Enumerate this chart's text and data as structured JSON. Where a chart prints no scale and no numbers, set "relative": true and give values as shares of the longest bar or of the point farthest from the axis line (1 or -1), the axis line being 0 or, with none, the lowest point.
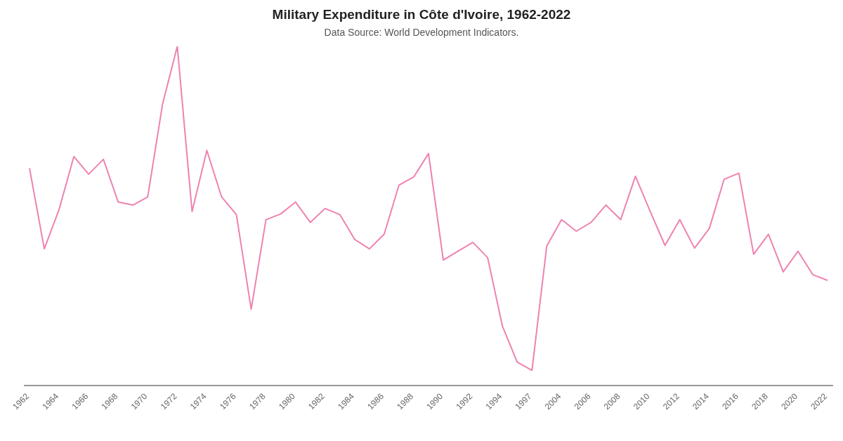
{
  "chart_data": {
    "type": "line",
    "title": "Military Expenditure in Côte d'Ivoire, 1962-2022",
    "subtitle": "Data Source: World Development Indicators.",
    "relative": true,
    "grid": false,
    "legend": false,
    "marker": "none",
    "line_style": "solid",
    "categories": [
      "1962",
      null,
      "1964",
      null,
      "1966",
      null,
      "1968",
      null,
      "1970",
      null,
      "1972",
      null,
      "1974",
      null,
      "1976",
      null,
      "1978",
      null,
      "1980",
      null,
      "1982",
      null,
      "1984",
      null,
      "1986",
      null,
      "1988",
      null,
      "1990",
      null,
      "1992",
      null,
      "1994",
      null,
      "1997",
      null,
      "2004",
      null,
      "2006",
      null,
      "2008",
      null,
      "2010",
      null,
      "2012",
      null,
      "2014",
      null,
      "2016",
      null,
      "2018",
      null,
      "2020",
      null,
      "2022"
    ],
    "series": [
      {
        "color": "#ee82b1",
        "values": [
          0.641,
          0.403,
          0.519,
          0.675,
          0.623,
          0.667,
          0.541,
          0.532,
          0.556,
          0.829,
          1,
          0.513,
          0.693,
          0.556,
          0.504,
          0.225,
          0.489,
          0.506,
          0.541,
          0.481,
          0.522,
          0.504,
          0.431,
          0.403,
          0.446,
          0.591,
          0.615,
          0.684,
          0.37,
          0.396,
          0.422,
          0.377,
          0.175,
          0.069,
          0.045,
          0.411,
          0.489,
          0.455,
          0.481,
          0.532,
          0.489,
          0.617,
          0.513,
          0.413,
          0.489,
          0.405,
          0.463,
          0.608,
          0.626,
          0.387,
          0.446,
          0.335,
          0.396,
          0.327,
          0.31
        ]
      }
    ]
  }
}
